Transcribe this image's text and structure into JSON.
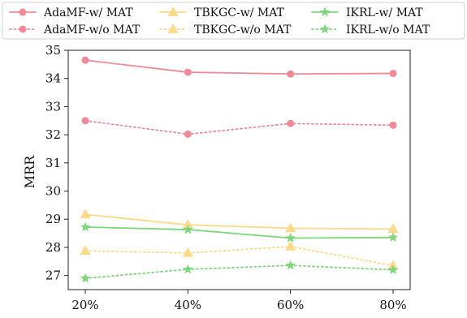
{
  "chart_data": {
    "type": "line",
    "title": "",
    "xlabel": "",
    "ylabel": "MRR",
    "categories": [
      "20%",
      "40%",
      "60%",
      "80%"
    ],
    "ylim": [
      26.5,
      35.0
    ],
    "yticks": [
      27,
      28,
      29,
      30,
      31,
      32,
      33,
      34,
      35
    ],
    "grid": false,
    "legend_position": "top",
    "legend_columns": 3,
    "series": [
      {
        "name": "AdaMF-w/ MAT",
        "values": [
          34.65,
          34.22,
          34.16,
          34.18
        ],
        "color": "#f08a99",
        "linestyle": "solid",
        "marker": "circle"
      },
      {
        "name": "AdaMF-w/o MAT",
        "values": [
          32.5,
          32.02,
          32.4,
          32.34
        ],
        "color": "#f08a99",
        "linestyle": "dotted",
        "marker": "circle"
      },
      {
        "name": "TBKGC-w/ MAT",
        "values": [
          29.17,
          28.8,
          28.68,
          28.65
        ],
        "color": "#fcd98b",
        "linestyle": "solid",
        "marker": "triangle"
      },
      {
        "name": "TBKGC-w/o MAT",
        "values": [
          27.88,
          27.8,
          28.03,
          27.35
        ],
        "color": "#fcd98b",
        "linestyle": "dotted",
        "marker": "triangle"
      },
      {
        "name": "IKRL-w/ MAT",
        "values": [
          28.72,
          28.63,
          28.33,
          28.35
        ],
        "color": "#7dd67a",
        "linestyle": "solid",
        "marker": "star"
      },
      {
        "name": "IKRL-w/o MAT",
        "values": [
          26.9,
          27.22,
          27.36,
          27.2
        ],
        "color": "#7dd67a",
        "linestyle": "dotted",
        "marker": "star"
      }
    ]
  }
}
